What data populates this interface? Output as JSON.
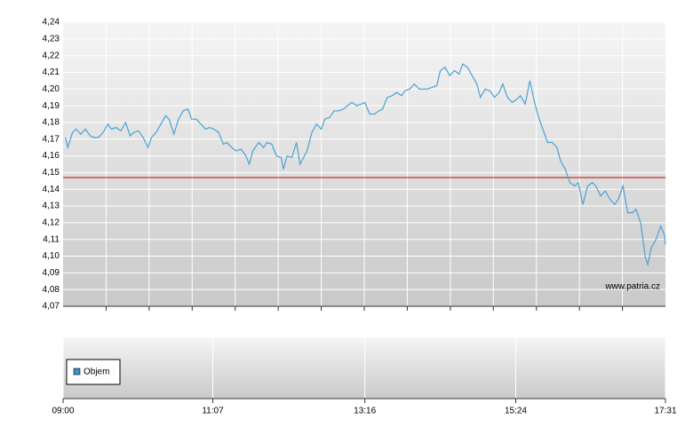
{
  "chart_data": [
    {
      "type": "line",
      "x": [
        542,
        544,
        548,
        551,
        555,
        559,
        563,
        566,
        570,
        574,
        578,
        581,
        585,
        589,
        593,
        597,
        600,
        604,
        608,
        612,
        615,
        619,
        623,
        627,
        630,
        634,
        638,
        642,
        646,
        649,
        653,
        657,
        661,
        664,
        668,
        672,
        676,
        679,
        683,
        687,
        691,
        695,
        698,
        701,
        706,
        710,
        713,
        717,
        721,
        725,
        727,
        730,
        734,
        738,
        741,
        744,
        747,
        751,
        755,
        759,
        762,
        766,
        770,
        774,
        778,
        781,
        785,
        789,
        793,
        796,
        800,
        804,
        808,
        811,
        815,
        819,
        823,
        827,
        830,
        834,
        838,
        842,
        845,
        849,
        853,
        857,
        860,
        864,
        868,
        872,
        876,
        879,
        883,
        887,
        891,
        894,
        898,
        902,
        906,
        910,
        913,
        917,
        921,
        925,
        928,
        932,
        936,
        940,
        943,
        947,
        951,
        955,
        959,
        962,
        966,
        970,
        974,
        977,
        981,
        985,
        989,
        992,
        996,
        1000,
        1004,
        1008,
        1011,
        1015,
        1019,
        1023,
        1026,
        1030,
        1034,
        1036,
        1039,
        1043,
        1047,
        1050,
        1051
      ],
      "series": [
        {
          "color": "#4aa3d3",
          "values": [
            4.171,
            4.165,
            4.174,
            4.176,
            4.173,
            4.176,
            4.172,
            4.171,
            4.171,
            4.174,
            4.179,
            4.176,
            4.177,
            4.175,
            4.18,
            4.172,
            4.174,
            4.175,
            4.171,
            4.165,
            4.171,
            4.174,
            4.179,
            4.184,
            4.182,
            4.173,
            4.182,
            4.187,
            4.188,
            4.182,
            4.182,
            4.179,
            4.176,
            4.177,
            4.176,
            4.174,
            4.167,
            4.168,
            4.165,
            4.163,
            4.164,
            4.16,
            4.155,
            4.163,
            4.168,
            4.165,
            4.168,
            4.167,
            4.16,
            4.159,
            4.152,
            4.16,
            4.159,
            4.168,
            4.155,
            4.159,
            4.163,
            4.174,
            4.179,
            4.176,
            4.182,
            4.183,
            4.187,
            4.187,
            4.188,
            4.19,
            4.192,
            4.19,
            4.191,
            4.192,
            4.185,
            4.185,
            4.187,
            4.188,
            4.195,
            4.196,
            4.198,
            4.196,
            4.199,
            4.2,
            4.203,
            4.2,
            4.2,
            4.2,
            4.201,
            4.202,
            4.211,
            4.213,
            4.208,
            4.211,
            4.209,
            4.215,
            4.213,
            4.208,
            4.203,
            4.195,
            4.2,
            4.199,
            4.195,
            4.198,
            4.203,
            4.195,
            4.192,
            4.194,
            4.196,
            4.191,
            4.205,
            4.192,
            4.184,
            4.176,
            4.168,
            4.168,
            4.165,
            4.157,
            4.152,
            4.144,
            4.142,
            4.144,
            4.131,
            4.142,
            4.144,
            4.142,
            4.136,
            4.139,
            4.134,
            4.131,
            4.134,
            4.142,
            4.126,
            4.126,
            4.128,
            4.12,
            4.099,
            4.095,
            4.105,
            4.11,
            4.118,
            4.113,
            4.107
          ]
        }
      ],
      "hlines": [
        {
          "value": 4.147,
          "color": "#cc0000"
        }
      ],
      "annotation": "www.patria.cz",
      "xlim": [
        540,
        1051
      ],
      "ylim": [
        4.07,
        4.24
      ],
      "yticks": [
        {
          "value": 4.07,
          "label": "4,07"
        },
        {
          "value": 4.08,
          "label": "4,08"
        },
        {
          "value": 4.09,
          "label": "4,09"
        },
        {
          "value": 4.1,
          "label": "4,10"
        },
        {
          "value": 4.11,
          "label": "4,11"
        },
        {
          "value": 4.12,
          "label": "4,12"
        },
        {
          "value": 4.13,
          "label": "4,13"
        },
        {
          "value": 4.14,
          "label": "4,14"
        },
        {
          "value": 4.15,
          "label": "4,15"
        },
        {
          "value": 4.16,
          "label": "4,16"
        },
        {
          "value": 4.17,
          "label": "4,17"
        },
        {
          "value": 4.18,
          "label": "4,18"
        },
        {
          "value": 4.19,
          "label": "4,19"
        },
        {
          "value": 4.2,
          "label": "4,20"
        },
        {
          "value": 4.21,
          "label": "4,21"
        },
        {
          "value": 4.22,
          "label": "4,22"
        },
        {
          "value": 4.23,
          "label": "4,23"
        },
        {
          "value": 4.24,
          "label": "4,24"
        }
      ],
      "grid": true
    },
    {
      "type": "bar",
      "series": [
        {
          "name": "Objem",
          "color": "#3d8fc6",
          "values": []
        }
      ],
      "xlim": [
        540,
        1051
      ],
      "xticks": [
        {
          "value": 540,
          "label": "09:00"
        },
        {
          "value": 667,
          "label": "11:07"
        },
        {
          "value": 796,
          "label": "13:16"
        },
        {
          "value": 924,
          "label": "15:24"
        },
        {
          "value": 1051,
          "label": "17:31"
        }
      ],
      "grid": true
    }
  ]
}
